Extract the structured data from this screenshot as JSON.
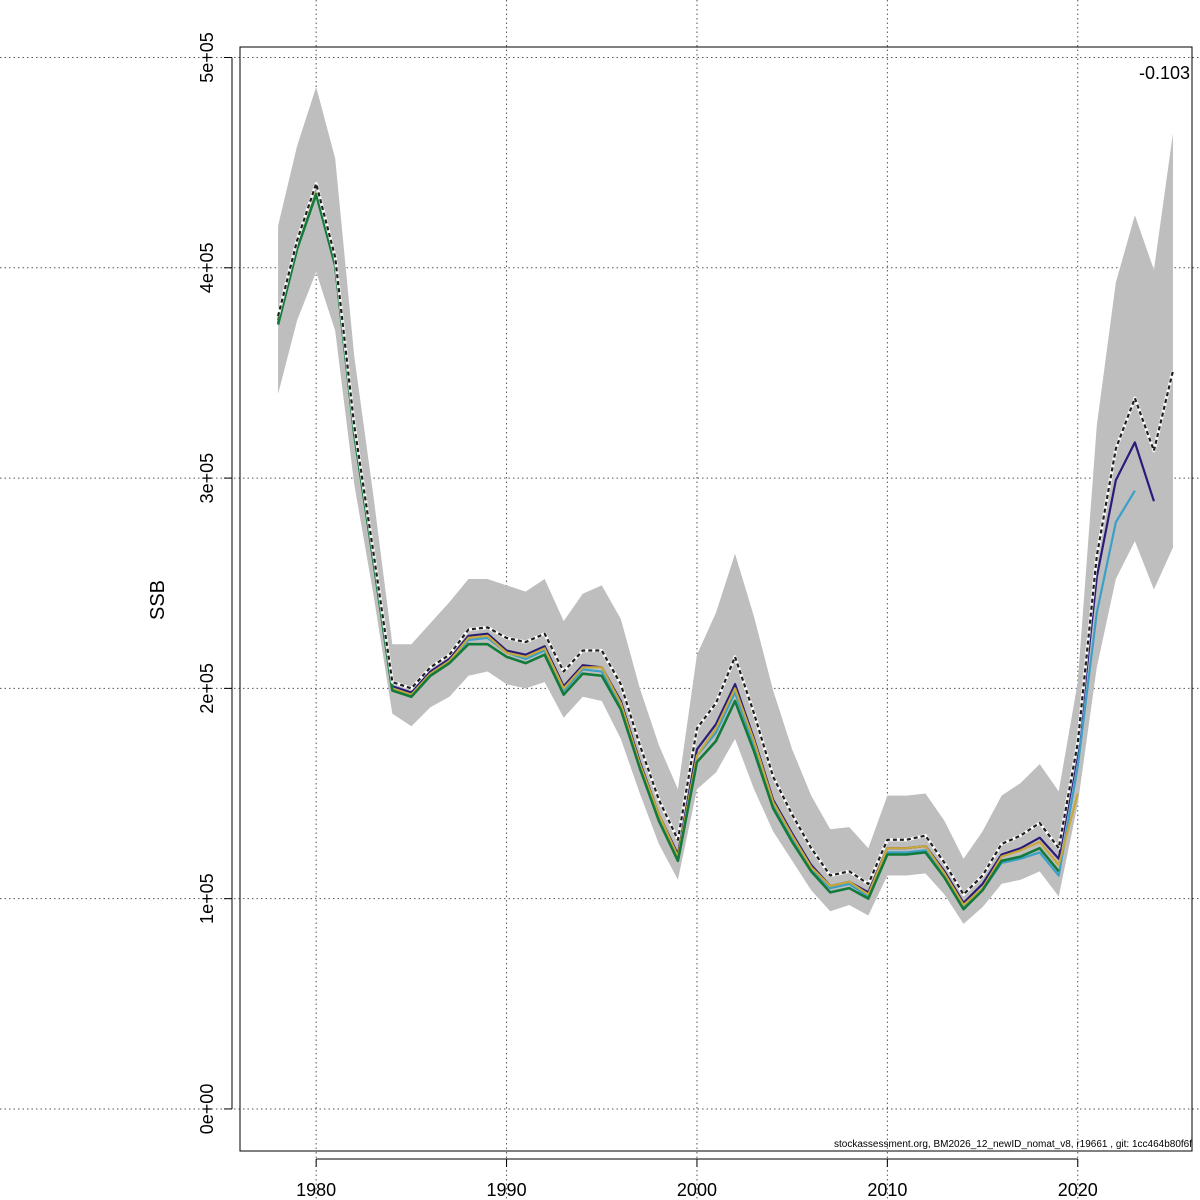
{
  "chart_data": {
    "type": "line",
    "ylabel": "SSB",
    "xlabel": "",
    "title": "",
    "corner_label": "-0.103",
    "footnote": "stockassessment.org, BM2026_12_newID_nomat_v8, r19661 , git: 1cc464b80f6f",
    "xlim": [
      1976,
      2026
    ],
    "ylim": [
      -20000,
      505000
    ],
    "x_ticks": [
      {
        "value": 1980,
        "label": "1980"
      },
      {
        "value": 1990,
        "label": "1990"
      },
      {
        "value": 2000,
        "label": "2000"
      },
      {
        "value": 2010,
        "label": "2010"
      },
      {
        "value": 2020,
        "label": "2020"
      }
    ],
    "y_ticks": [
      {
        "value": 0,
        "label": "0e+00"
      },
      {
        "value": 100000,
        "label": "1e+05"
      },
      {
        "value": 200000,
        "label": "2e+05"
      },
      {
        "value": 300000,
        "label": "3e+05"
      },
      {
        "value": 400000,
        "label": "4e+05"
      },
      {
        "value": 500000,
        "label": "5e+05"
      }
    ],
    "grid": true,
    "band_color": "#bebebe",
    "confidence_band": {
      "x": [
        1978,
        1979,
        1980,
        1981,
        1982,
        1983,
        1984,
        1985,
        1986,
        1987,
        1988,
        1989,
        1990,
        1991,
        1992,
        1993,
        1994,
        1995,
        1996,
        1997,
        1998,
        1999,
        2000,
        2001,
        2002,
        2003,
        2004,
        2005,
        2006,
        2007,
        2008,
        2009,
        2010,
        2011,
        2012,
        2013,
        2014,
        2015,
        2016,
        2017,
        2018,
        2019,
        2020,
        2021,
        2022,
        2023,
        2024,
        2025
      ],
      "lower": [
        340000,
        375000,
        398000,
        370000,
        297000,
        245000,
        188000,
        182000,
        191000,
        196000,
        206000,
        208000,
        202000,
        200000,
        203000,
        186000,
        196000,
        194000,
        176000,
        150000,
        126000,
        109000,
        152000,
        160000,
        176000,
        152000,
        132000,
        118000,
        104000,
        94000,
        97000,
        92000,
        111000,
        111000,
        112000,
        102000,
        88000,
        96000,
        107000,
        109000,
        113000,
        101000,
        145000,
        210000,
        252000,
        270000,
        247000,
        267000
      ],
      "upper": [
        420000,
        458000,
        486000,
        452000,
        358000,
        292000,
        221000,
        221000,
        231000,
        241000,
        252000,
        252000,
        249000,
        246000,
        252000,
        232000,
        245000,
        249000,
        233000,
        200000,
        173000,
        152000,
        216000,
        236000,
        264000,
        234000,
        199000,
        171000,
        149000,
        133000,
        134000,
        124000,
        149000,
        149000,
        150000,
        137000,
        119000,
        132000,
        149000,
        155000,
        164000,
        151000,
        203000,
        325000,
        393000,
        425000,
        399000,
        464000
      ]
    },
    "series": [
      {
        "color": "#1f1f1f",
        "dashed": true,
        "width": 2.2,
        "x": [
          1978,
          1979,
          1980,
          1981,
          1982,
          1983,
          1984,
          1985,
          1986,
          1987,
          1988,
          1989,
          1990,
          1991,
          1992,
          1993,
          1994,
          1995,
          1996,
          1997,
          1998,
          1999,
          2000,
          2001,
          2002,
          2003,
          2004,
          2005,
          2006,
          2007,
          2008,
          2009,
          2010,
          2011,
          2012,
          2013,
          2014,
          2015,
          2016,
          2017,
          2018,
          2019,
          2020,
          2021,
          2022,
          2023,
          2024,
          2025
        ],
        "y": [
          377000,
          413000,
          440000,
          405000,
          325000,
          265000,
          203000,
          200000,
          210000,
          216000,
          228000,
          229000,
          224000,
          222000,
          226000,
          208000,
          218000,
          218000,
          202000,
          173000,
          147000,
          128000,
          181000,
          193000,
          215000,
          188000,
          158000,
          140000,
          124000,
          111000,
          113000,
          107000,
          128000,
          128000,
          130000,
          117000,
          102000,
          111000,
          126000,
          130000,
          136000,
          124000,
          174000,
          263000,
          314000,
          338000,
          313000,
          351000
        ]
      },
      {
        "color": "#2a1b7a",
        "dashed": false,
        "width": 2.2,
        "x": [
          1978,
          1979,
          1980,
          1981,
          1982,
          1983,
          1984,
          1985,
          1986,
          1987,
          1988,
          1989,
          1990,
          1991,
          1992,
          1993,
          1994,
          1995,
          1996,
          1997,
          1998,
          1999,
          2000,
          2001,
          2002,
          2003,
          2004,
          2005,
          2006,
          2007,
          2008,
          2009,
          2010,
          2011,
          2012,
          2013,
          2014,
          2015,
          2016,
          2017,
          2018,
          2019,
          2020,
          2021,
          2022,
          2023,
          2024
        ],
        "y": [
          375000,
          411000,
          438000,
          403000,
          323000,
          263000,
          201000,
          198000,
          208000,
          214000,
          225000,
          226000,
          218000,
          216000,
          220000,
          201000,
          211000,
          210000,
          194000,
          165000,
          140000,
          121000,
          171000,
          183000,
          202000,
          176000,
          147000,
          131000,
          116000,
          106000,
          108000,
          103000,
          124000,
          124000,
          125000,
          113000,
          98000,
          107000,
          121000,
          124000,
          129000,
          119000,
          170000,
          253000,
          299000,
          317000,
          289000
        ]
      },
      {
        "color": "#3aa0c8",
        "dashed": false,
        "width": 2.2,
        "x": [
          1978,
          1979,
          1980,
          1981,
          1982,
          1983,
          1984,
          1985,
          1986,
          1987,
          1988,
          1989,
          1990,
          1991,
          1992,
          1993,
          1994,
          1995,
          1996,
          1997,
          1998,
          1999,
          2000,
          2001,
          2002,
          2003,
          2004,
          2005,
          2006,
          2007,
          2008,
          2009,
          2010,
          2011,
          2012,
          2013,
          2014,
          2015,
          2016,
          2017,
          2018,
          2019,
          2020,
          2021,
          2022,
          2023
        ],
        "y": [
          374000,
          410000,
          436000,
          402000,
          322000,
          262000,
          200000,
          197000,
          207000,
          213000,
          223000,
          224000,
          217000,
          214000,
          218000,
          199000,
          209000,
          208000,
          192000,
          163000,
          139000,
          119000,
          168000,
          179000,
          198000,
          173000,
          145000,
          129000,
          114000,
          105000,
          107000,
          101000,
          122000,
          122000,
          123000,
          111000,
          96000,
          104000,
          117000,
          119000,
          122000,
          111000,
          163000,
          236000,
          279000,
          294000
        ]
      },
      {
        "color": "#c8a83a",
        "dashed": false,
        "width": 2.2,
        "x": [
          1978,
          1979,
          1980,
          1981,
          1982,
          1983,
          1984,
          1985,
          1986,
          1987,
          1988,
          1989,
          1990,
          1991,
          1992,
          1993,
          1994,
          1995,
          1996,
          1997,
          1998,
          1999,
          2000,
          2001,
          2002,
          2003,
          2004,
          2005,
          2006,
          2007,
          2008,
          2009,
          2010,
          2011,
          2012,
          2013,
          2014,
          2015,
          2016,
          2017,
          2018,
          2019,
          2020
        ],
        "y": [
          374000,
          410000,
          436000,
          402000,
          322000,
          262000,
          200000,
          197000,
          207000,
          213000,
          224000,
          225000,
          217000,
          215000,
          219000,
          200000,
          210000,
          210000,
          193000,
          164000,
          140000,
          120000,
          168000,
          181000,
          200000,
          175000,
          146000,
          130000,
          115000,
          106000,
          108000,
          102000,
          124000,
          124000,
          125000,
          112000,
          97000,
          105000,
          120000,
          123000,
          127000,
          116000,
          150000
        ]
      },
      {
        "color": "#127a3a",
        "dashed": false,
        "width": 2.6,
        "x": [
          1978,
          1979,
          1980,
          1981,
          1982,
          1983,
          1984,
          1985,
          1986,
          1987,
          1988,
          1989,
          1990,
          1991,
          1992,
          1993,
          1994,
          1995,
          1996,
          1997,
          1998,
          1999,
          2000,
          2001,
          2002,
          2003,
          2004,
          2005,
          2006,
          2007,
          2008,
          2009,
          2010,
          2011,
          2012,
          2013,
          2014,
          2015,
          2016,
          2017,
          2018,
          2019
        ],
        "y": [
          373000,
          409000,
          435000,
          401000,
          321000,
          261000,
          199000,
          196000,
          206000,
          212000,
          221000,
          221000,
          215000,
          212000,
          216000,
          197000,
          207000,
          206000,
          190000,
          162000,
          137000,
          118000,
          165000,
          175000,
          194000,
          170000,
          143000,
          127000,
          113000,
          103000,
          105000,
          100000,
          121000,
          121000,
          122000,
          110000,
          95000,
          104000,
          118000,
          120000,
          124000,
          113000
        ]
      }
    ]
  }
}
